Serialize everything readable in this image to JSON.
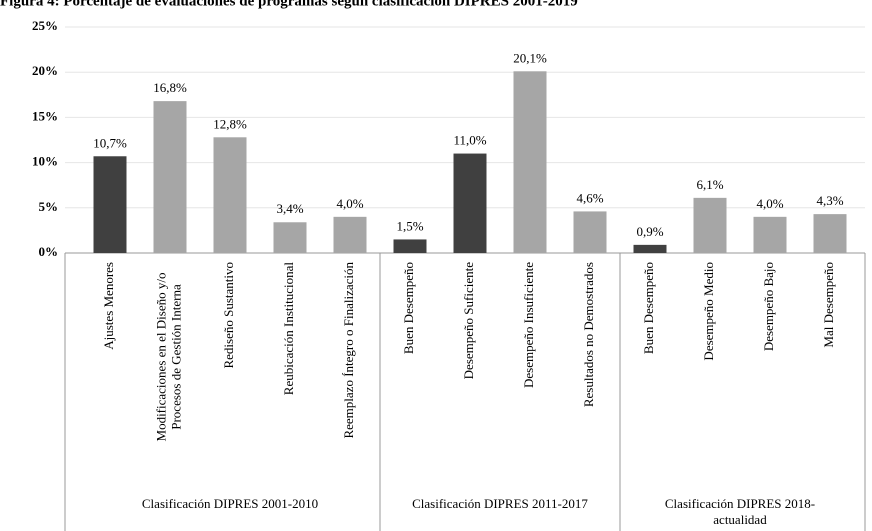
{
  "chart_data": {
    "type": "bar",
    "title": "Figura 4: Porcentaje de evaluaciones de programas según clasificación DIPRES 2001-2019",
    "ylim": [
      0,
      25
    ],
    "yticks": [
      {
        "value": 0,
        "label": "0%"
      },
      {
        "value": 5,
        "label": "5%"
      },
      {
        "value": 10,
        "label": "10%"
      },
      {
        "value": 15,
        "label": "15%"
      },
      {
        "value": 20,
        "label": "20%"
      },
      {
        "value": 25,
        "label": "25%"
      }
    ],
    "grid": true,
    "groups": [
      {
        "label": [
          "Clasificación DIPRES 2001-2010"
        ],
        "categories": [
          [
            "Ajustes Menores"
          ],
          [
            "Modificaciones en el Diseño y/o",
            "Procesos de Gestión Interna"
          ],
          [
            "Rediseño Sustantivo"
          ],
          [
            "Reubicación Institucional"
          ],
          [
            "Reemplazo Íntegro o Finalización"
          ]
        ],
        "values": [
          10.7,
          16.8,
          12.8,
          3.4,
          4.0
        ],
        "value_labels": [
          "10,7%",
          "16,8%",
          "12,8%",
          "3,4%",
          "4,0%"
        ],
        "colors": [
          "#404040",
          "#a6a6a6",
          "#a6a6a6",
          "#a6a6a6",
          "#a6a6a6"
        ]
      },
      {
        "label": [
          "Clasificación DIPRES 2011-2017"
        ],
        "categories": [
          [
            "Buen Desempeño"
          ],
          [
            "Desempeño Suficiente"
          ],
          [
            "Desempeño Insuficiente"
          ],
          [
            "Resultados no Demostrados"
          ]
        ],
        "values": [
          1.5,
          11.0,
          20.1,
          4.6
        ],
        "value_labels": [
          "1,5%",
          "11,0%",
          "20,1%",
          "4,6%"
        ],
        "colors": [
          "#404040",
          "#404040",
          "#a6a6a6",
          "#a6a6a6"
        ]
      },
      {
        "label": [
          "Clasificación DIPRES 2018-",
          "actualidad"
        ],
        "categories": [
          [
            "Buen Desempeño"
          ],
          [
            "Desempeño Medio"
          ],
          [
            "Desempeño Bajo"
          ],
          [
            "Mal Desempeño"
          ]
        ],
        "values": [
          0.9,
          6.1,
          4.0,
          4.3
        ],
        "value_labels": [
          "0,9%",
          "6,1%",
          "4,0%",
          "4,3%"
        ],
        "colors": [
          "#404040",
          "#a6a6a6",
          "#a6a6a6",
          "#a6a6a6"
        ]
      }
    ]
  }
}
